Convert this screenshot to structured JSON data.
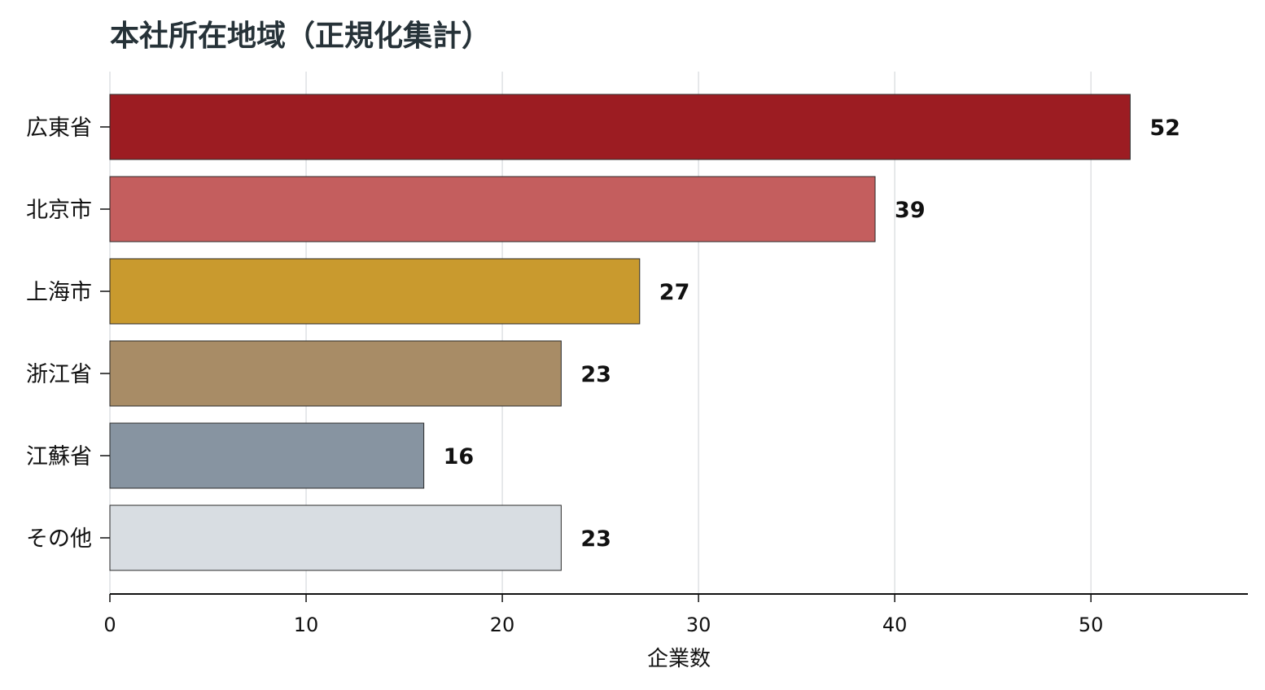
{
  "chart_data": {
    "type": "bar",
    "orientation": "horizontal",
    "title": "本社所在地域（正規化集計）",
    "xlabel": "企業数",
    "ylabel": "",
    "categories": [
      "広東省",
      "北京市",
      "上海市",
      "浙江省",
      "江蘇省",
      "その他"
    ],
    "values": [
      52,
      39,
      27,
      23,
      16,
      23
    ],
    "data_labels": [
      "52",
      "39",
      "27",
      "23",
      "16",
      "23"
    ],
    "colors": [
      "#9C1C22",
      "#C45E5E",
      "#C99A2E",
      "#A88C66",
      "#8794A1",
      "#D8DDE2"
    ],
    "xlim": [
      0,
      58
    ],
    "xticks": [
      0,
      10,
      20,
      30,
      40,
      50
    ],
    "xtick_labels": [
      "0",
      "10",
      "20",
      "30",
      "40",
      "50"
    ],
    "grid": "vertical",
    "legend": "none"
  }
}
